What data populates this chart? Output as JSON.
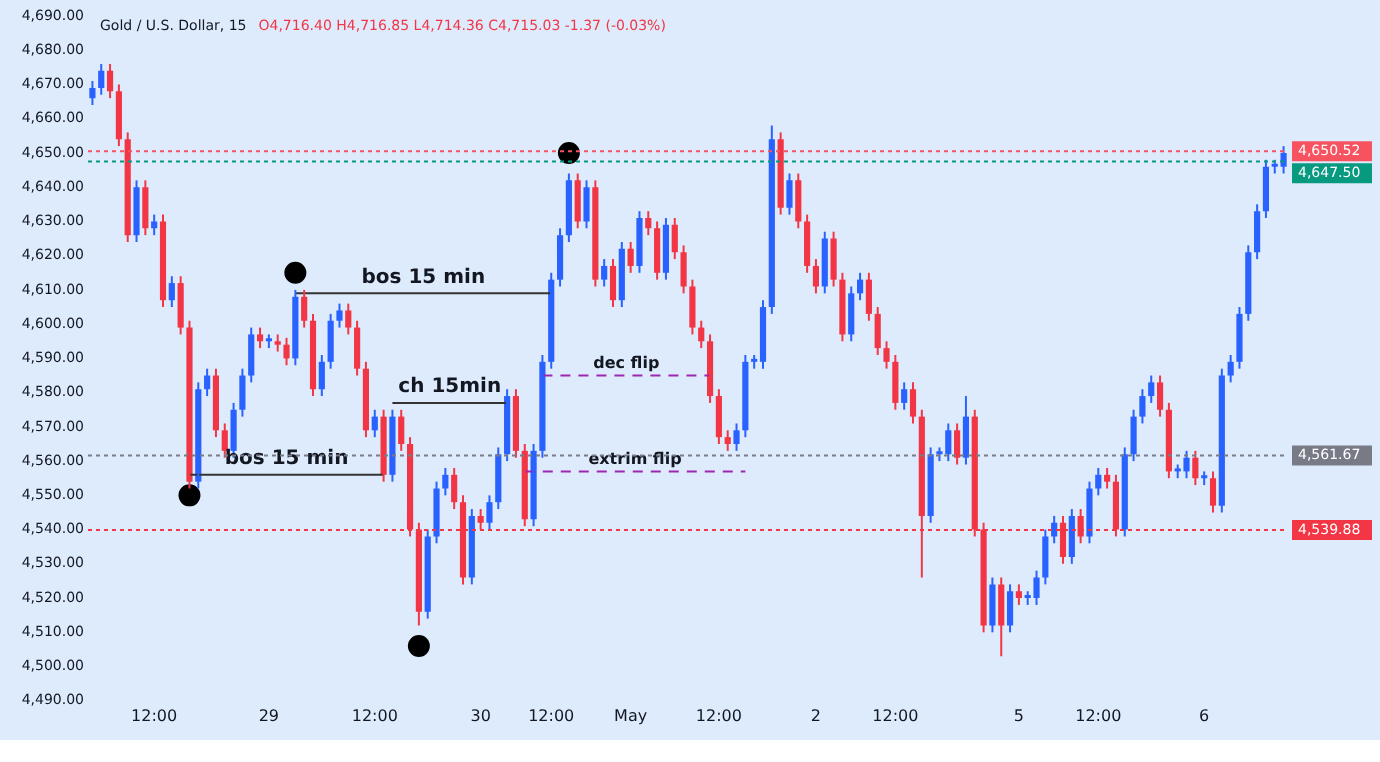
{
  "chart_data": {
    "type": "candlestick",
    "title": "Gold / U.S. Dollar, 15",
    "subtitle": "O4,716.40 H4,716.85 L4,714.36 C4,715.03 -1.37 (-0.03%)",
    "categories": [
      null,
      null,
      null,
      null,
      null,
      null,
      null,
      "12:00",
      null,
      null,
      null,
      null,
      null,
      null,
      null,
      null,
      null,
      null,
      null,
      null,
      "29",
      null,
      null,
      null,
      null,
      null,
      null,
      null,
      null,
      null,
      null,
      null,
      "12:00",
      null,
      null,
      null,
      null,
      null,
      null,
      null,
      null,
      null,
      null,
      null,
      "30",
      null,
      null,
      null,
      null,
      null,
      null,
      null,
      "12:00",
      null,
      null,
      null,
      null,
      null,
      null,
      null,
      null,
      "May",
      null,
      null,
      null,
      null,
      null,
      null,
      null,
      null,
      null,
      "12:00",
      null,
      null,
      null,
      null,
      null,
      null,
      null,
      null,
      null,
      null,
      "2",
      null,
      null,
      null,
      null,
      null,
      null,
      null,
      null,
      "12:00",
      null,
      null,
      null,
      null,
      null,
      null,
      null,
      null,
      null,
      null,
      null,
      null,
      null,
      "5",
      null,
      null,
      null,
      null,
      null,
      null,
      null,
      null,
      "12:00",
      null,
      null,
      null,
      null,
      null,
      null,
      null,
      null,
      null,
      null,
      null,
      "6",
      null,
      null,
      null,
      null,
      null,
      null,
      null,
      null,
      null
    ],
    "ylim": [
      4490,
      4690
    ],
    "yticks": [
      {
        "value": 4490,
        "label": "4,490.00"
      },
      {
        "value": 4500,
        "label": "4,500.00"
      },
      {
        "value": 4510,
        "label": "4,510.00"
      },
      {
        "value": 4520,
        "label": "4,520.00"
      },
      {
        "value": 4530,
        "label": "4,530.00"
      },
      {
        "value": 4540,
        "label": "4,540.00"
      },
      {
        "value": 4550,
        "label": "4,550.00"
      },
      {
        "value": 4560,
        "label": "4,560.00"
      },
      {
        "value": 4570,
        "label": "4,570.00"
      },
      {
        "value": 4580,
        "label": "4,580.00"
      },
      {
        "value": 4590,
        "label": "4,590.00"
      },
      {
        "value": 4600,
        "label": "4,600.00"
      },
      {
        "value": 4610,
        "label": "4,610.00"
      },
      {
        "value": 4620,
        "label": "4,620.00"
      },
      {
        "value": 4630,
        "label": "4,630.00"
      },
      {
        "value": 4640,
        "label": "4,640.00"
      },
      {
        "value": 4650,
        "label": "4,650.00"
      },
      {
        "value": 4660,
        "label": "4,660.00"
      },
      {
        "value": 4670,
        "label": "4,670.00"
      },
      {
        "value": 4680,
        "label": "4,680.00"
      },
      {
        "value": 4690,
        "label": "4,690.00"
      }
    ],
    "grid": false,
    "legend": false,
    "series": [
      {
        "ohlc": [
          [
            4666,
            4671,
            4664,
            4669
          ],
          [
            4669,
            4676,
            4667,
            4674
          ],
          [
            4674,
            4676,
            4666,
            4668
          ],
          [
            4668,
            4670,
            4652,
            4654
          ],
          [
            4654,
            4656,
            4624,
            4626
          ],
          [
            4626,
            4642,
            4624,
            4640
          ],
          [
            4640,
            4642,
            4626,
            4628
          ],
          [
            4628,
            4632,
            4626,
            4630
          ],
          [
            4630,
            4632,
            4605,
            4607
          ],
          [
            4607,
            4614,
            4605,
            4612
          ],
          [
            4612,
            4614,
            4597,
            4599
          ],
          [
            4599,
            4601,
            4552,
            4554
          ],
          [
            4554,
            4583,
            4552,
            4581
          ],
          [
            4581,
            4587,
            4579,
            4585
          ],
          [
            4585,
            4587,
            4567,
            4569
          ],
          [
            4569,
            4571,
            4561,
            4563
          ],
          [
            4563,
            4577,
            4561,
            4575
          ],
          [
            4575,
            4587,
            4573,
            4585
          ],
          [
            4585,
            4599,
            4583,
            4597
          ],
          [
            4597,
            4599,
            4593,
            4595
          ],
          [
            4595,
            4597,
            4593,
            4595
          ],
          [
            4595,
            4597,
            4592,
            4594
          ],
          [
            4594,
            4596,
            4588,
            4590
          ],
          [
            4590,
            4610,
            4588,
            4608
          ],
          [
            4608,
            4610,
            4599,
            4601
          ],
          [
            4601,
            4603,
            4579,
            4581
          ],
          [
            4581,
            4591,
            4579,
            4589
          ],
          [
            4589,
            4603,
            4587,
            4601
          ],
          [
            4601,
            4606,
            4599,
            4604
          ],
          [
            4604,
            4606,
            4597,
            4599
          ],
          [
            4599,
            4601,
            4585,
            4587
          ],
          [
            4587,
            4589,
            4567,
            4569
          ],
          [
            4569,
            4575,
            4567,
            4573
          ],
          [
            4573,
            4575,
            4554,
            4556
          ],
          [
            4556,
            4575,
            4554,
            4573
          ],
          [
            4573,
            4575,
            4563,
            4565
          ],
          [
            4565,
            4567,
            4538,
            4540
          ],
          [
            4540,
            4542,
            4512,
            4516
          ],
          [
            4516,
            4540,
            4514,
            4538
          ],
          [
            4538,
            4554,
            4536,
            4552
          ],
          [
            4552,
            4558,
            4550,
            4556
          ],
          [
            4556,
            4558,
            4546,
            4548
          ],
          [
            4548,
            4550,
            4524,
            4526
          ],
          [
            4526,
            4546,
            4524,
            4544
          ],
          [
            4544,
            4546,
            4540,
            4542
          ],
          [
            4542,
            4550,
            4540,
            4548
          ],
          [
            4548,
            4564,
            4546,
            4562
          ],
          [
            4562,
            4581,
            4560,
            4579
          ],
          [
            4579,
            4581,
            4561,
            4563
          ],
          [
            4563,
            4565,
            4541,
            4543
          ],
          [
            4543,
            4565,
            4541,
            4563
          ],
          [
            4563,
            4591,
            4561,
            4589
          ],
          [
            4589,
            4615,
            4587,
            4613
          ],
          [
            4613,
            4628,
            4611,
            4626
          ],
          [
            4626,
            4644,
            4624,
            4642
          ],
          [
            4642,
            4644,
            4628,
            4630
          ],
          [
            4630,
            4642,
            4628,
            4640
          ],
          [
            4640,
            4642,
            4611,
            4613
          ],
          [
            4613,
            4619,
            4611,
            4617
          ],
          [
            4617,
            4619,
            4605,
            4607
          ],
          [
            4607,
            4624,
            4605,
            4622
          ],
          [
            4622,
            4624,
            4615,
            4617
          ],
          [
            4617,
            4633,
            4615,
            4631
          ],
          [
            4631,
            4633,
            4626,
            4628
          ],
          [
            4628,
            4630,
            4613,
            4615
          ],
          [
            4615,
            4631,
            4613,
            4629
          ],
          [
            4629,
            4631,
            4619,
            4621
          ],
          [
            4621,
            4623,
            4609,
            4611
          ],
          [
            4611,
            4613,
            4597,
            4599
          ],
          [
            4599,
            4601,
            4593,
            4595
          ],
          [
            4595,
            4597,
            4577,
            4579
          ],
          [
            4579,
            4581,
            4565,
            4567
          ],
          [
            4567,
            4569,
            4563,
            4565
          ],
          [
            4565,
            4571,
            4563,
            4569
          ],
          [
            4569,
            4591,
            4567,
            4589
          ],
          [
            4589,
            4591,
            4587,
            4589
          ],
          [
            4589,
            4607,
            4587,
            4605
          ],
          [
            4605,
            4658,
            4603,
            4654
          ],
          [
            4654,
            4656,
            4632,
            4634
          ],
          [
            4634,
            4644,
            4632,
            4642
          ],
          [
            4642,
            4644,
            4628,
            4630
          ],
          [
            4630,
            4632,
            4615,
            4617
          ],
          [
            4617,
            4619,
            4609,
            4611
          ],
          [
            4611,
            4627,
            4609,
            4625
          ],
          [
            4625,
            4627,
            4611,
            4613
          ],
          [
            4613,
            4615,
            4595,
            4597
          ],
          [
            4597,
            4611,
            4595,
            4609
          ],
          [
            4609,
            4615,
            4607,
            4613
          ],
          [
            4613,
            4615,
            4601,
            4603
          ],
          [
            4603,
            4605,
            4591,
            4593
          ],
          [
            4593,
            4595,
            4587,
            4589
          ],
          [
            4589,
            4591,
            4575,
            4577
          ],
          [
            4577,
            4583,
            4575,
            4581
          ],
          [
            4581,
            4583,
            4571,
            4573
          ],
          [
            4573,
            4575,
            4526,
            4544
          ],
          [
            4544,
            4564,
            4542,
            4562
          ],
          [
            4562,
            4564,
            4560,
            4562
          ],
          [
            4562,
            4571,
            4560,
            4569
          ],
          [
            4569,
            4571,
            4559,
            4561
          ],
          [
            4561,
            4579,
            4559,
            4573
          ],
          [
            4573,
            4575,
            4538,
            4540
          ],
          [
            4540,
            4542,
            4510,
            4512
          ],
          [
            4512,
            4526,
            4510,
            4524
          ],
          [
            4524,
            4526,
            4503,
            4512
          ],
          [
            4512,
            4524,
            4510,
            4522
          ],
          [
            4522,
            4524,
            4518,
            4520
          ],
          [
            4520,
            4522,
            4518,
            4520
          ],
          [
            4520,
            4528,
            4518,
            4526
          ],
          [
            4526,
            4540,
            4524,
            4538
          ],
          [
            4538,
            4544,
            4536,
            4542
          ],
          [
            4542,
            4544,
            4530,
            4532
          ],
          [
            4532,
            4546,
            4530,
            4544
          ],
          [
            4544,
            4546,
            4536,
            4538
          ],
          [
            4538,
            4554,
            4536,
            4552
          ],
          [
            4552,
            4558,
            4550,
            4556
          ],
          [
            4556,
            4558,
            4552,
            4554
          ],
          [
            4554,
            4556,
            4538,
            4540
          ],
          [
            4540,
            4564,
            4538,
            4562
          ],
          [
            4562,
            4575,
            4560,
            4573
          ],
          [
            4573,
            4581,
            4571,
            4579
          ],
          [
            4579,
            4585,
            4577,
            4583
          ],
          [
            4583,
            4585,
            4573,
            4575
          ],
          [
            4575,
            4577,
            4555,
            4557
          ],
          [
            4557,
            4559,
            4555,
            4557
          ],
          [
            4557,
            4563,
            4555,
            4561
          ],
          [
            4561,
            4563,
            4553,
            4555
          ],
          [
            4555,
            4557,
            4553,
            4555
          ],
          [
            4555,
            4557,
            4545,
            4547
          ],
          [
            4547,
            4587,
            4545,
            4585
          ],
          [
            4585,
            4591,
            4583,
            4589
          ],
          [
            4589,
            4605,
            4587,
            4603
          ],
          [
            4603,
            4623,
            4601,
            4621
          ],
          [
            4621,
            4635,
            4619,
            4633
          ],
          [
            4633,
            4648,
            4631,
            4646
          ],
          [
            4646,
            4648,
            4644,
            4646
          ],
          [
            4646,
            4652,
            4644,
            4650
          ]
        ],
        "colors": [
          "#2962ff",
          "#2962ff",
          "#f23645",
          "#f23645",
          "#f23645",
          "#2962ff",
          "#f23645",
          "#2962ff",
          "#f23645",
          "#2962ff",
          "#f23645",
          "#f23645",
          "#2962ff",
          "#2962ff",
          "#f23645",
          "#f23645",
          "#2962ff",
          "#2962ff",
          "#2962ff",
          "#f23645",
          "#2962ff",
          "#f23645",
          "#f23645",
          "#2962ff",
          "#f23645",
          "#f23645",
          "#2962ff",
          "#2962ff",
          "#2962ff",
          "#f23645",
          "#f23645",
          "#f23645",
          "#2962ff",
          "#f23645",
          "#2962ff",
          "#f23645",
          "#f23645",
          "#f23645",
          "#2962ff",
          "#2962ff",
          "#2962ff",
          "#f23645",
          "#f23645",
          "#2962ff",
          "#f23645",
          "#2962ff",
          "#2962ff",
          "#2962ff",
          "#f23645",
          "#f23645",
          "#2962ff",
          "#2962ff",
          "#2962ff",
          "#2962ff",
          "#2962ff",
          "#f23645",
          "#2962ff",
          "#f23645",
          "#2962ff",
          "#f23645",
          "#2962ff",
          "#f23645",
          "#2962ff",
          "#f23645",
          "#f23645",
          "#2962ff",
          "#f23645",
          "#f23645",
          "#f23645",
          "#f23645",
          "#f23645",
          "#f23645",
          "#f23645",
          "#2962ff",
          "#2962ff",
          "#2962ff",
          "#2962ff",
          "#2962ff",
          "#f23645",
          "#2962ff",
          "#f23645",
          "#f23645",
          "#f23645",
          "#2962ff",
          "#f23645",
          "#f23645",
          "#2962ff",
          "#2962ff",
          "#f23645",
          "#f23645",
          "#f23645",
          "#f23645",
          "#2962ff",
          "#f23645",
          "#f23645",
          "#2962ff",
          "#2962ff",
          "#2962ff",
          "#f23645",
          "#2962ff",
          "#f23645",
          "#f23645",
          "#2962ff",
          "#f23645",
          "#2962ff",
          "#f23645",
          "#2962ff",
          "#2962ff",
          "#2962ff",
          "#2962ff",
          "#f23645",
          "#2962ff",
          "#f23645",
          "#2962ff",
          "#2962ff",
          "#f23645",
          "#f23645",
          "#2962ff",
          "#2962ff",
          "#2962ff",
          "#2962ff",
          "#f23645",
          "#f23645",
          "#2962ff",
          "#2962ff",
          "#f23645",
          "#2962ff",
          "#f23645",
          "#2962ff",
          "#2962ff",
          "#2962ff",
          "#2962ff",
          "#2962ff",
          "#2962ff",
          "#2962ff",
          "#2962ff"
        ]
      },
      {
        "type": "scatter",
        "color": "#000000",
        "marker": "circle",
        "values": [
          null,
          null,
          null,
          null,
          null,
          null,
          null,
          null,
          null,
          null,
          null,
          4550,
          null,
          null,
          null,
          null,
          null,
          null,
          null,
          null,
          null,
          null,
          null,
          4615,
          null,
          null,
          null,
          null,
          null,
          null,
          null,
          null,
          null,
          null,
          null,
          null,
          null,
          4506,
          null,
          null,
          null,
          null,
          null,
          null,
          null,
          null,
          null,
          null,
          null,
          null,
          null,
          null,
          null,
          null,
          4650,
          null,
          null,
          null,
          null,
          null,
          null,
          null,
          null,
          null,
          null,
          null,
          null,
          null,
          null,
          null,
          null,
          null,
          null,
          null,
          null,
          null,
          null,
          null,
          null,
          null,
          null,
          null,
          null,
          null,
          null,
          null,
          null,
          null,
          null,
          null,
          null,
          null,
          null,
          null,
          null,
          null,
          null,
          null,
          null,
          null,
          null,
          null,
          null,
          null,
          null,
          null,
          null,
          null,
          null,
          null,
          null,
          null,
          null,
          null,
          null,
          null,
          null,
          null,
          null,
          null,
          null,
          null,
          null,
          null,
          null,
          null,
          null,
          null,
          null,
          null,
          null,
          null,
          null,
          null,
          null,
          null
        ]
      },
      {
        "type": "line",
        "color": "#333333",
        "line_style": "solid",
        "values": [
          null,
          null,
          null,
          null,
          null,
          null,
          null,
          null,
          null,
          null,
          null,
          4556,
          4556,
          4556,
          4556,
          4556,
          4556,
          4556,
          4556,
          4556,
          4556,
          4556,
          4556,
          4556,
          4556,
          4556,
          4556,
          4556,
          4556,
          4556,
          4556,
          4556,
          4556,
          4556,
          null,
          null,
          null,
          null,
          null,
          null,
          null,
          null,
          null,
          null,
          null,
          null,
          null,
          null,
          null,
          null,
          null,
          null,
          null,
          null,
          null,
          null,
          null,
          null,
          null,
          null,
          null,
          null,
          null,
          null,
          null,
          null,
          null,
          null,
          null,
          null,
          null,
          null,
          null,
          null,
          null,
          null,
          null,
          null,
          null,
          null,
          null,
          null,
          null,
          null,
          null,
          null,
          null,
          null,
          null,
          null,
          null,
          null,
          null,
          null,
          null,
          null,
          null,
          null,
          null,
          null,
          null,
          null,
          null,
          null,
          null,
          null,
          null,
          null,
          null,
          null,
          null,
          null,
          null,
          null,
          null,
          null,
          null,
          null,
          null,
          null,
          null,
          null,
          null,
          null,
          null,
          null,
          null,
          null,
          null,
          null,
          null,
          null,
          null,
          null,
          null,
          null
        ]
      },
      {
        "type": "line",
        "color": "#333333",
        "line_style": "solid",
        "values": [
          null,
          null,
          null,
          null,
          null,
          null,
          null,
          null,
          null,
          null,
          null,
          null,
          null,
          null,
          null,
          null,
          null,
          null,
          null,
          null,
          null,
          null,
          null,
          4609,
          4609,
          4609,
          4609,
          4609,
          4609,
          4609,
          4609,
          4609,
          4609,
          4609,
          4609,
          4609,
          4609,
          4609,
          4609,
          4609,
          4609,
          4609,
          4609,
          4609,
          4609,
          4609,
          4609,
          4609,
          4609,
          4609,
          4609,
          4609,
          4609,
          null,
          null,
          null,
          null,
          null,
          null,
          null,
          null,
          null,
          null,
          null,
          null,
          null,
          null,
          null,
          null,
          null,
          null,
          null,
          null,
          null,
          null,
          null,
          null,
          null,
          null,
          null,
          null,
          null,
          null,
          null,
          null,
          null,
          null,
          null,
          null,
          null,
          null,
          null,
          null,
          null,
          null,
          null,
          null,
          null,
          null,
          null,
          null,
          null,
          null,
          null,
          null,
          null,
          null,
          null,
          null,
          null,
          null,
          null,
          null,
          null,
          null,
          null,
          null,
          null,
          null,
          null,
          null,
          null,
          null,
          null,
          null,
          null,
          null,
          null,
          null,
          null,
          null,
          null,
          null,
          null,
          null,
          null
        ]
      },
      {
        "type": "line",
        "color": "#333333",
        "line_style": "solid",
        "values": [
          null,
          null,
          null,
          null,
          null,
          null,
          null,
          null,
          null,
          null,
          null,
          null,
          null,
          null,
          null,
          null,
          null,
          null,
          null,
          null,
          null,
          null,
          null,
          null,
          null,
          null,
          null,
          null,
          null,
          null,
          null,
          null,
          null,
          null,
          4577,
          4577,
          4577,
          4577,
          4577,
          4577,
          4577,
          4577,
          4577,
          4577,
          4577,
          4577,
          4577,
          4577,
          null,
          null,
          null,
          null,
          null,
          null,
          null,
          null,
          null,
          null,
          null,
          null,
          null,
          null,
          null,
          null,
          null,
          null,
          null,
          null,
          null,
          null,
          null,
          null,
          null,
          null,
          null,
          null,
          null,
          null,
          null,
          null,
          null,
          null,
          null,
          null,
          null,
          null,
          null,
          null,
          null,
          null,
          null,
          null,
          null,
          null,
          null,
          null,
          null,
          null,
          null,
          null,
          null,
          null,
          null,
          null,
          null,
          null,
          null,
          null,
          null,
          null,
          null,
          null,
          null,
          null,
          null,
          null,
          null,
          null,
          null,
          null,
          null,
          null,
          null,
          null,
          null,
          null,
          null,
          null,
          null,
          null,
          null,
          null,
          null,
          null,
          null,
          null
        ]
      },
      {
        "type": "line",
        "color": "#9c27b0",
        "line_style": "dashed",
        "values": [
          null,
          null,
          null,
          null,
          null,
          null,
          null,
          null,
          null,
          null,
          null,
          null,
          null,
          null,
          null,
          null,
          null,
          null,
          null,
          null,
          null,
          null,
          null,
          null,
          null,
          null,
          null,
          null,
          null,
          null,
          null,
          null,
          null,
          null,
          null,
          null,
          null,
          null,
          null,
          null,
          null,
          null,
          null,
          null,
          null,
          null,
          null,
          null,
          null,
          null,
          null,
          4585,
          4585,
          4585,
          4585,
          4585,
          4585,
          4585,
          4585,
          4585,
          4585,
          4585,
          4585,
          4585,
          4585,
          4585,
          4585,
          4585,
          4585,
          4585,
          4585,
          null,
          null,
          null,
          null,
          null,
          null,
          null,
          null,
          null,
          null,
          null,
          null,
          null,
          null,
          null,
          null,
          null,
          null,
          null,
          null,
          null,
          null,
          null,
          null,
          null,
          null,
          null,
          null,
          null,
          null,
          null,
          null,
          null,
          null,
          null,
          null,
          null,
          null,
          null,
          null,
          null,
          null,
          null,
          null,
          null,
          null,
          null,
          null,
          null,
          null,
          null,
          null,
          null,
          null,
          null,
          null,
          null,
          null,
          null,
          null,
          null,
          null,
          null,
          null,
          null
        ]
      },
      {
        "type": "line",
        "color": "#9c27b0",
        "line_style": "dashed",
        "values": [
          null,
          null,
          null,
          null,
          null,
          null,
          null,
          null,
          null,
          null,
          null,
          null,
          null,
          null,
          null,
          null,
          null,
          null,
          null,
          null,
          null,
          null,
          null,
          null,
          null,
          null,
          null,
          null,
          null,
          null,
          null,
          null,
          null,
          null,
          null,
          null,
          null,
          null,
          null,
          null,
          null,
          null,
          null,
          null,
          null,
          null,
          null,
          null,
          null,
          4557,
          4557,
          4557,
          4557,
          4557,
          4557,
          4557,
          4557,
          4557,
          4557,
          4557,
          4557,
          4557,
          4557,
          4557,
          4557,
          4557,
          4557,
          4557,
          4557,
          4557,
          4557,
          4557,
          4557,
          4557,
          4557,
          null,
          null,
          null,
          null,
          null,
          null,
          null,
          null,
          null,
          null,
          null,
          null,
          null,
          null,
          null,
          null,
          null,
          null,
          null,
          null,
          null,
          null,
          null,
          null,
          null,
          null,
          null,
          null,
          null,
          null,
          null,
          null,
          null,
          null,
          null,
          null,
          null,
          null,
          null,
          null,
          null,
          null,
          null,
          null,
          null,
          null,
          null,
          null,
          null,
          null,
          null,
          null,
          null,
          null,
          null,
          null,
          null,
          null,
          null,
          null,
          null
        ]
      }
    ],
    "annotations": [
      {
        "text": "bos 15 min",
        "y": 4556
      },
      {
        "text": "bos 15 min",
        "y": 4609
      },
      {
        "text": "ch 15min",
        "y": 4577
      },
      {
        "text": "dec flip",
        "y": 4585
      },
      {
        "text": "extrim flip",
        "y": 4557
      }
    ],
    "ref_lines": [
      {
        "axis": "y",
        "value": 4650.52,
        "label": "4,650.52",
        "color": "#f7525f"
      },
      {
        "axis": "y",
        "value": 4647.5,
        "label": "4,647.50",
        "color": "#089981"
      },
      {
        "axis": "y",
        "value": 4561.67,
        "label": "4,561.67",
        "color": "#787b86"
      },
      {
        "axis": "y",
        "value": 4539.88,
        "label": "4,539.88",
        "color": "#f23645"
      }
    ]
  }
}
